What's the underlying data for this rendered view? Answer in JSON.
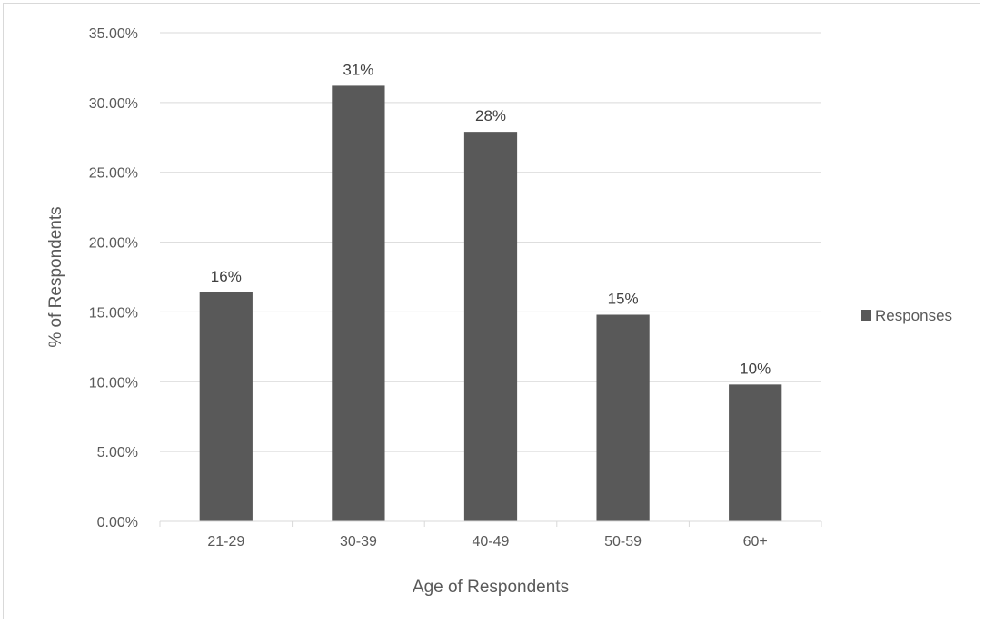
{
  "chart_data": {
    "type": "bar",
    "title": "",
    "xlabel": "Age of Respondents",
    "ylabel": "% of Respondents",
    "categories": [
      "21-29",
      "30-39",
      "40-49",
      "50-59",
      "60+"
    ],
    "series": [
      {
        "name": "Responses",
        "values": [
          16.4,
          31.2,
          27.9,
          14.8,
          9.8
        ],
        "data_labels": [
          "16%",
          "31%",
          "28%",
          "15%",
          "10%"
        ],
        "color": "#595959"
      }
    ],
    "ylim": [
      0,
      35
    ],
    "yticks": [
      0,
      5,
      10,
      15,
      20,
      25,
      30,
      35
    ],
    "ytick_labels": [
      "0.00%",
      "5.00%",
      "10.00%",
      "15.00%",
      "20.00%",
      "25.00%",
      "30.00%",
      "35.00%"
    ],
    "grid": true,
    "legend": "right"
  }
}
